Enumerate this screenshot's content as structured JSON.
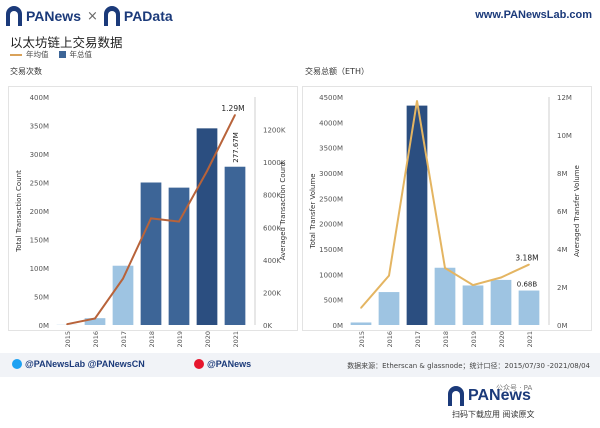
{
  "header": {
    "brand_left": "PANews",
    "separator": "×",
    "brand_right": "PAData",
    "url": "www.PANewsLab.com"
  },
  "title": "以太坊链上交易数据",
  "legend": {
    "line_label": "年均值",
    "bar_label": "年总值"
  },
  "colors": {
    "bar_dark": "#2b4e80",
    "bar_mid": "#3d6597",
    "bar_light": "#9ec4e2",
    "line_left": "#b8633a",
    "line_right": "#e4b562",
    "brand": "#1b3a7a"
  },
  "chart_data": [
    {
      "type": "bar",
      "panel_title": "交易次数",
      "categories": [
        "2015",
        "2016",
        "2017",
        "2018",
        "2019",
        "2020",
        "2021"
      ],
      "series": [
        {
          "name": "年总值",
          "values": [
            0.3,
            12,
            104,
            250,
            241,
            345,
            277.67
          ],
          "axis": "left"
        },
        {
          "name": "年均值",
          "values": [
            5,
            40,
            285,
            655,
            635,
            945,
            1290
          ],
          "axis": "right"
        }
      ],
      "bar_shades": [
        "light",
        "light",
        "light",
        "mid",
        "mid",
        "dark",
        "mid"
      ],
      "ylabel": "Total Transaction Count",
      "y2label": "Averaged Transaction Count",
      "ylim": [
        0,
        400
      ],
      "y2lim": [
        0,
        1400
      ],
      "yticks": [
        "0M",
        "50M",
        "100M",
        "150M",
        "200M",
        "250M",
        "300M",
        "350M",
        "400M"
      ],
      "y2ticks": [
        "0K",
        "200K",
        "400K",
        "600K",
        "800K",
        "1000K",
        "1200K"
      ],
      "annotations": {
        "line_last": "1.29M",
        "bar_last": "277.67M"
      }
    },
    {
      "type": "bar",
      "panel_title": "交易总额（ETH）",
      "categories": [
        "2015",
        "2016",
        "2017",
        "2018",
        "2019",
        "2020",
        "2021"
      ],
      "series": [
        {
          "name": "年总值",
          "values": [
            50,
            650,
            4330,
            1130,
            780,
            890,
            680
          ],
          "axis": "left"
        },
        {
          "name": "年均值",
          "values": [
            0.9,
            2.6,
            11.8,
            3.0,
            2.1,
            2.5,
            3.18
          ],
          "axis": "right"
        }
      ],
      "bar_shades": [
        "light",
        "light",
        "dark",
        "light",
        "light",
        "light",
        "light"
      ],
      "ylabel": "Total Transfer Volume",
      "y2label": "Averaged Transfer Volume",
      "ylim": [
        0,
        4500
      ],
      "y2lim": [
        0,
        12
      ],
      "yticks": [
        "0M",
        "500M",
        "1000M",
        "1500M",
        "2000M",
        "2500M",
        "3000M",
        "3500M",
        "4000M",
        "4500M"
      ],
      "y2ticks": [
        "0M",
        "2M",
        "4M",
        "6M",
        "8M",
        "10M",
        "12M"
      ],
      "annotations": {
        "line_last": "3.18M",
        "bar_last": "0.68B"
      }
    }
  ],
  "footer": {
    "twitter": "@PANewsLab @PANewsCN",
    "weibo": "@PANews",
    "source": "数据来源：Etherscan & glassnode；统计口径：2015/07/30 -2021/08/04",
    "wechat": "公众号 · PA",
    "brand": "PANews",
    "brand_sub": "扫码下载应用  阅读原文"
  }
}
